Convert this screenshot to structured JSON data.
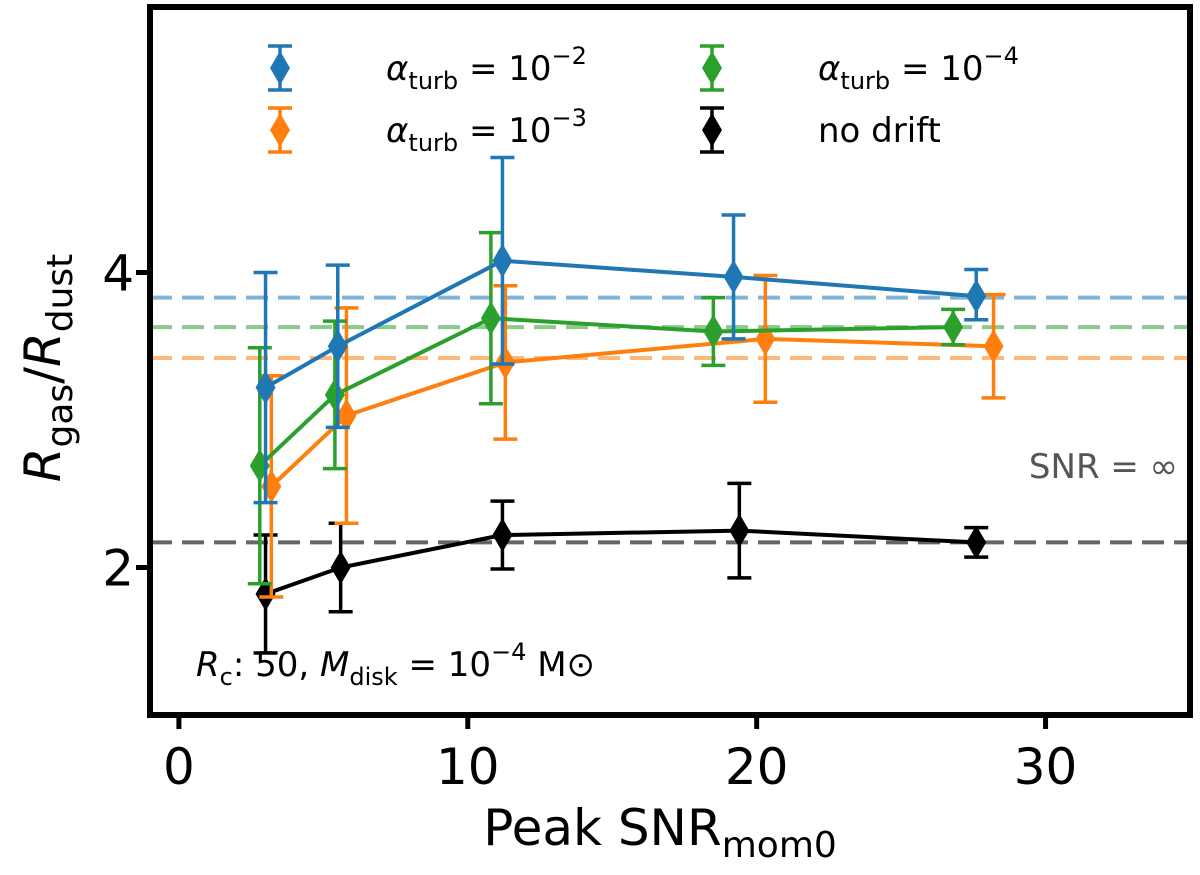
{
  "chart_data": {
    "type": "line",
    "title": "",
    "xlabel": {
      "main": "Peak SNR",
      "sub": "mom0"
    },
    "ylabel": {
      "num_main": "R",
      "num_sub": "gas",
      "den_main": "R",
      "den_sub": "dust"
    },
    "xlim": [
      -1,
      35
    ],
    "ylim": [
      1.0,
      5.8
    ],
    "xticks": [
      0,
      10,
      20,
      30
    ],
    "xtick_labels": [
      "0",
      "10",
      "20",
      "30"
    ],
    "yticks": [
      2,
      4
    ],
    "ytick_labels": [
      "2",
      "4"
    ],
    "grid": false,
    "legend_position": "top",
    "series": [
      {
        "name": "αturb = 10^-2",
        "label_main": "α",
        "label_sub": "turb",
        "label_eq": " = 10",
        "label_exp": "−2",
        "color": "#1f77b4",
        "x": [
          3.0,
          5.5,
          11.2,
          19.2,
          27.6
        ],
        "y": [
          3.22,
          3.5,
          4.08,
          3.97,
          3.84
        ],
        "yerr_low": [
          0.78,
          0.55,
          0.7,
          0.42,
          0.16
        ],
        "yerr_high": [
          0.78,
          0.55,
          0.7,
          0.42,
          0.18
        ],
        "reference_line": 3.83
      },
      {
        "name": "αturb = 10^-3",
        "label_main": "α",
        "label_sub": "turb",
        "label_eq": " = 10",
        "label_exp": "−3",
        "color": "#ff7f0e",
        "x": [
          3.2,
          5.8,
          11.3,
          20.3,
          28.2
        ],
        "y": [
          2.55,
          3.03,
          3.39,
          3.55,
          3.5
        ],
        "yerr_low": [
          0.75,
          0.73,
          0.52,
          0.43,
          0.35
        ],
        "yerr_high": [
          0.75,
          0.73,
          0.52,
          0.43,
          0.35
        ],
        "reference_line": 3.42
      },
      {
        "name": "αturb = 10^-4",
        "label_main": "α",
        "label_sub": "turb",
        "label_eq": " = 10",
        "label_exp": "−4",
        "color": "#2ca02c",
        "x": [
          2.8,
          5.4,
          10.8,
          18.5,
          26.8
        ],
        "y": [
          2.69,
          3.17,
          3.69,
          3.6,
          3.63
        ],
        "yerr_low": [
          0.8,
          0.5,
          0.58,
          0.23,
          0.12
        ],
        "yerr_high": [
          0.8,
          0.5,
          0.58,
          0.23,
          0.12
        ],
        "reference_line": 3.63
      },
      {
        "name": "no drift",
        "label_main": "no drift",
        "label_sub": "",
        "label_eq": "",
        "label_exp": "",
        "color": "#000000",
        "x": [
          3.0,
          5.6,
          11.2,
          19.4,
          27.6
        ],
        "y": [
          1.82,
          2.0,
          2.22,
          2.25,
          2.17
        ],
        "yerr_low": [
          0.4,
          0.3,
          0.23,
          0.32,
          0.1
        ],
        "yerr_high": [
          0.4,
          0.3,
          0.23,
          0.32,
          0.1
        ],
        "reference_line": 2.17
      }
    ],
    "reference_line_label": "SNR = ∞",
    "annotation": {
      "r_main": "R",
      "r_sub": "c",
      "r_text": ": 50, ",
      "m_main": "M",
      "m_sub": "disk",
      "m_eq": " = 10",
      "m_exp": "−4",
      "m_unit": " M⊙"
    }
  }
}
